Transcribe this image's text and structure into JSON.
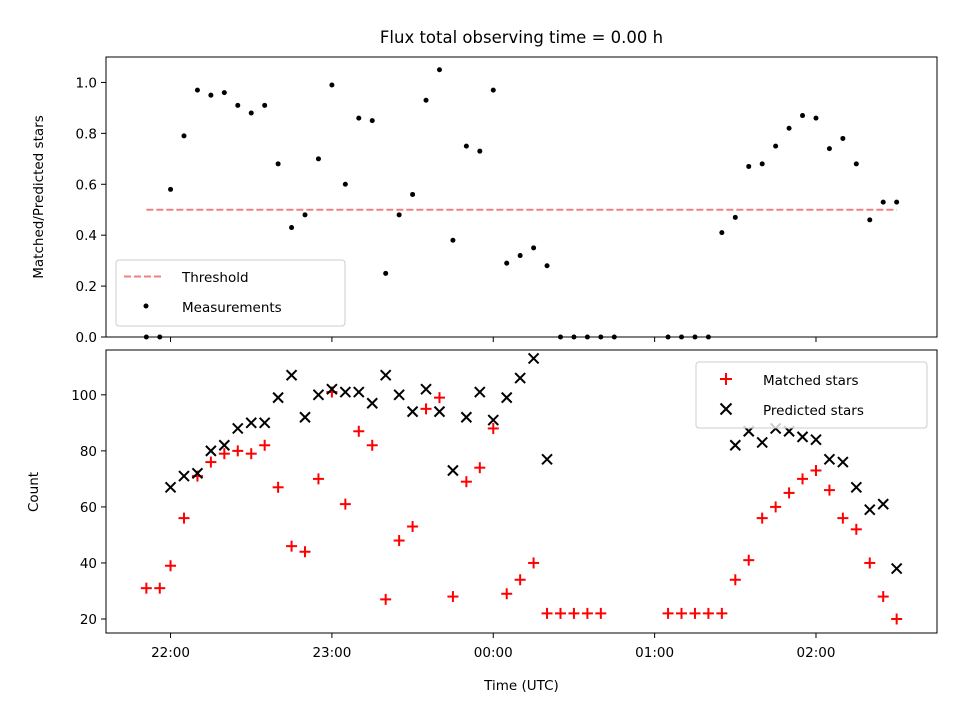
{
  "figure": {
    "title": "Flux total observing time = 0.00 h",
    "xlabel": "Time (UTC)"
  },
  "chart_data": [
    {
      "type": "scatter",
      "panel": "top",
      "title": "Flux total observing time = 0.00 h",
      "xlabel": "",
      "ylabel": "Matched/Predicted stars",
      "xlim": [
        "21:36",
        "02:45"
      ],
      "ylim": [
        0,
        1.1
      ],
      "x_ticks": [
        "22:00",
        "23:00",
        "00:00",
        "01:00",
        "02:00"
      ],
      "x_tick_labels_shown": false,
      "y_ticks": [
        0.0,
        0.2,
        0.4,
        0.6,
        0.8,
        1.0
      ],
      "y_tick_labels": [
        "0.0",
        "0.2",
        "0.4",
        "0.6",
        "0.8",
        "1.0"
      ],
      "grid": false,
      "legend": {
        "placement": "lower-left"
      },
      "series": [
        {
          "name": "Threshold",
          "kind": "line",
          "style": "dashed",
          "color": "#f08080",
          "x": [
            "21:51",
            "02:30"
          ],
          "y": [
            0.5,
            0.5
          ]
        },
        {
          "name": "Measurements",
          "kind": "points",
          "color": "#000000",
          "x": [
            "21:51",
            "21:56",
            "22:00",
            "22:05",
            "22:10",
            "22:15",
            "22:20",
            "22:25",
            "22:30",
            "22:35",
            "22:40",
            "22:45",
            "22:50",
            "22:55",
            "23:00",
            "23:05",
            "23:10",
            "23:15",
            "23:20",
            "23:25",
            "23:30",
            "23:35",
            "23:40",
            "23:45",
            "23:50",
            "23:55",
            "00:00",
            "00:05",
            "00:10",
            "00:15",
            "00:20",
            "00:25",
            "00:30",
            "00:35",
            "00:40",
            "00:45",
            "01:05",
            "01:10",
            "01:15",
            "01:20",
            "01:25",
            "01:30",
            "01:35",
            "01:40",
            "01:45",
            "01:50",
            "01:55",
            "02:00",
            "02:05",
            "02:10",
            "02:15",
            "02:20",
            "02:25",
            "02:30"
          ],
          "y": [
            0,
            0,
            0.58,
            0.79,
            0.97,
            0.95,
            0.96,
            0.91,
            0.88,
            0.91,
            0.68,
            0.43,
            0.48,
            0.7,
            0.99,
            0.6,
            0.86,
            0.85,
            0.25,
            0.48,
            0.56,
            0.93,
            1.05,
            0.38,
            0.75,
            0.73,
            0.97,
            0.29,
            0.32,
            0.35,
            0.28,
            0,
            0,
            0,
            0,
            0,
            0,
            0,
            0,
            0,
            0.41,
            0.47,
            0.67,
            0.68,
            0.75,
            0.82,
            0.87,
            0.86,
            0.74,
            0.78,
            0.68,
            0.46,
            0.53,
            0.53
          ]
        }
      ]
    },
    {
      "type": "scatter",
      "panel": "bottom",
      "title": "",
      "xlabel": "Time (UTC)",
      "ylabel": "Count",
      "xlim": [
        "21:36",
        "02:45"
      ],
      "ylim": [
        15,
        116
      ],
      "x_ticks": [
        "22:00",
        "23:00",
        "00:00",
        "01:00",
        "02:00"
      ],
      "x_tick_labels": [
        "22:00",
        "23:00",
        "00:00",
        "01:00",
        "02:00"
      ],
      "y_ticks": [
        20,
        40,
        60,
        80,
        100
      ],
      "y_tick_labels": [
        "20",
        "40",
        "60",
        "80",
        "100"
      ],
      "grid": false,
      "legend": {
        "placement": "top-right"
      },
      "series": [
        {
          "name": "Matched stars",
          "marker": "+",
          "color": "#ff0000",
          "x": [
            "21:51",
            "21:56",
            "22:00",
            "22:05",
            "22:10",
            "22:15",
            "22:20",
            "22:25",
            "22:30",
            "22:35",
            "22:40",
            "22:45",
            "22:50",
            "22:55",
            "23:00",
            "23:05",
            "23:10",
            "23:15",
            "23:20",
            "23:25",
            "23:30",
            "23:35",
            "23:40",
            "23:45",
            "23:50",
            "23:55",
            "00:00",
            "00:05",
            "00:10",
            "00:15",
            "00:20",
            "00:25",
            "00:30",
            "00:35",
            "00:40",
            "01:05",
            "01:10",
            "01:15",
            "01:20",
            "01:25",
            "01:30",
            "01:35",
            "01:40",
            "01:45",
            "01:50",
            "01:55",
            "02:00",
            "02:05",
            "02:10",
            "02:15",
            "02:20",
            "02:25",
            "02:30"
          ],
          "y": [
            31,
            31,
            39,
            56,
            71,
            76,
            79,
            80,
            79,
            82,
            67,
            46,
            44,
            70,
            101,
            61,
            87,
            82,
            27,
            48,
            53,
            95,
            99,
            28,
            69,
            74,
            88,
            29,
            34,
            40,
            22,
            22,
            22,
            22,
            22,
            22,
            22,
            22,
            22,
            22,
            34,
            41,
            56,
            60,
            65,
            70,
            73,
            66,
            56,
            52,
            40,
            28,
            20
          ]
        },
        {
          "name": "Predicted stars",
          "marker": "x",
          "color": "#000000",
          "x": [
            "22:00",
            "22:05",
            "22:10",
            "22:15",
            "22:20",
            "22:25",
            "22:30",
            "22:35",
            "22:40",
            "22:45",
            "22:50",
            "22:55",
            "23:00",
            "23:05",
            "23:10",
            "23:15",
            "23:20",
            "23:25",
            "23:30",
            "23:35",
            "23:40",
            "23:45",
            "23:50",
            "23:55",
            "00:00",
            "00:05",
            "00:10",
            "00:15",
            "00:20",
            "01:30",
            "01:35",
            "01:40",
            "01:45",
            "01:50",
            "01:55",
            "02:00",
            "02:05",
            "02:10",
            "02:15",
            "02:20",
            "02:25",
            "02:30"
          ],
          "y": [
            67,
            71,
            72,
            80,
            82,
            88,
            90,
            90,
            99,
            107,
            92,
            100,
            102,
            101,
            101,
            97,
            107,
            100,
            94,
            102,
            94,
            73,
            92,
            101,
            91,
            99,
            106,
            113,
            77,
            82,
            87,
            83,
            88,
            87,
            85,
            84,
            77,
            76,
            67,
            59,
            61,
            38
          ]
        }
      ]
    }
  ]
}
